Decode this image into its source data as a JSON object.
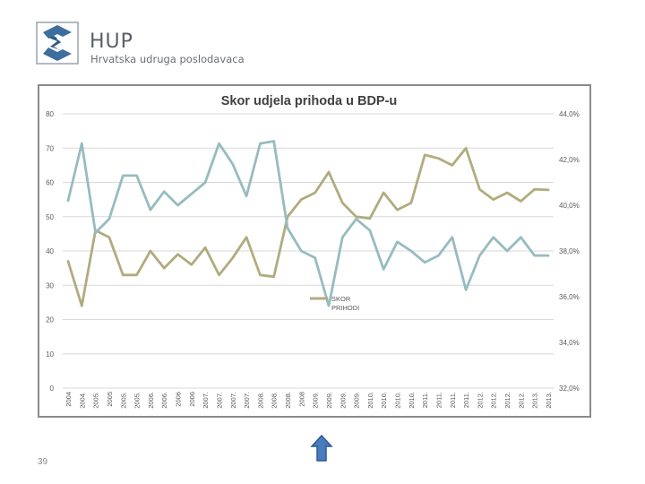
{
  "header": {
    "logo_icon": "hup-logo-icon",
    "brand_name": "HUP",
    "brand_subtitle": "Hrvatska udruga poslodavaca"
  },
  "colors": {
    "skor": "#b1ab7e",
    "prihodi": "#96bcc0",
    "grid": "#d9d9d9",
    "axis_text": "#595959",
    "logo_blue": "#3c6e9e",
    "nav_arrow": "#4a7bbd"
  },
  "chart_data": {
    "type": "line",
    "title": "Skor udjela prihoda u BDP-u",
    "categories": [
      "2004",
      "2004.",
      "2005.",
      "2005",
      "2005.",
      "2005.",
      "2006.",
      "2006.",
      "2006",
      "2006",
      "2007.",
      "2007.",
      "2007.",
      "2007.",
      "2008.",
      "2008.",
      "2008.",
      "2008",
      "2009.",
      "2009.",
      "2009.",
      "2009.",
      "2010.",
      "2010.",
      "2010.",
      "2010.",
      "2011.",
      "2011.",
      "2011.",
      "2011.",
      "2012.",
      "2012.",
      "2012.",
      "2012.",
      "2013.",
      "2013."
    ],
    "y_left": {
      "min": 0,
      "max": 80,
      "step": 10,
      "ticks": [
        "0",
        "10",
        "20",
        "30",
        "40",
        "50",
        "60",
        "70",
        "80"
      ]
    },
    "y_right": {
      "min": 32.0,
      "max": 44.0,
      "step": 2.0,
      "ticks": [
        "32,0%",
        "34,0%",
        "36,0%",
        "38,0%",
        "40,0%",
        "42,0%",
        "44,0%"
      ]
    },
    "grid": true,
    "legend_position": "middle-right",
    "series": [
      {
        "name": "SKOR",
        "axis": "left",
        "color_key": "skor",
        "values": [
          37,
          24,
          46,
          44,
          33,
          33,
          40,
          35,
          39,
          36,
          41,
          33,
          38,
          44,
          33,
          32.5,
          50,
          55,
          57,
          63,
          54,
          50,
          49.5,
          57,
          52,
          54,
          68,
          67,
          65,
          70,
          58,
          55,
          57,
          54.5,
          58,
          57.8
        ]
      },
      {
        "name": "PRIHODI",
        "axis": "right",
        "color_key": "prihodi",
        "values": [
          40.2,
          42.7,
          38.8,
          39.4,
          41.3,
          41.3,
          39.8,
          40.6,
          40.0,
          40.5,
          41.0,
          42.7,
          41.8,
          40.4,
          42.7,
          42.8,
          39.0,
          38.0,
          37.7,
          35.6,
          38.6,
          39.4,
          38.9,
          37.2,
          38.4,
          38.0,
          37.5,
          37.8,
          38.6,
          36.3,
          37.8,
          38.6,
          38.0,
          38.6,
          37.8,
          37.8
        ]
      }
    ],
    "legend": {
      "entries": [
        "SKOR",
        "PRIHODI"
      ]
    }
  },
  "footer": {
    "page_number": "39",
    "nav_icon": "up-arrow-icon"
  }
}
